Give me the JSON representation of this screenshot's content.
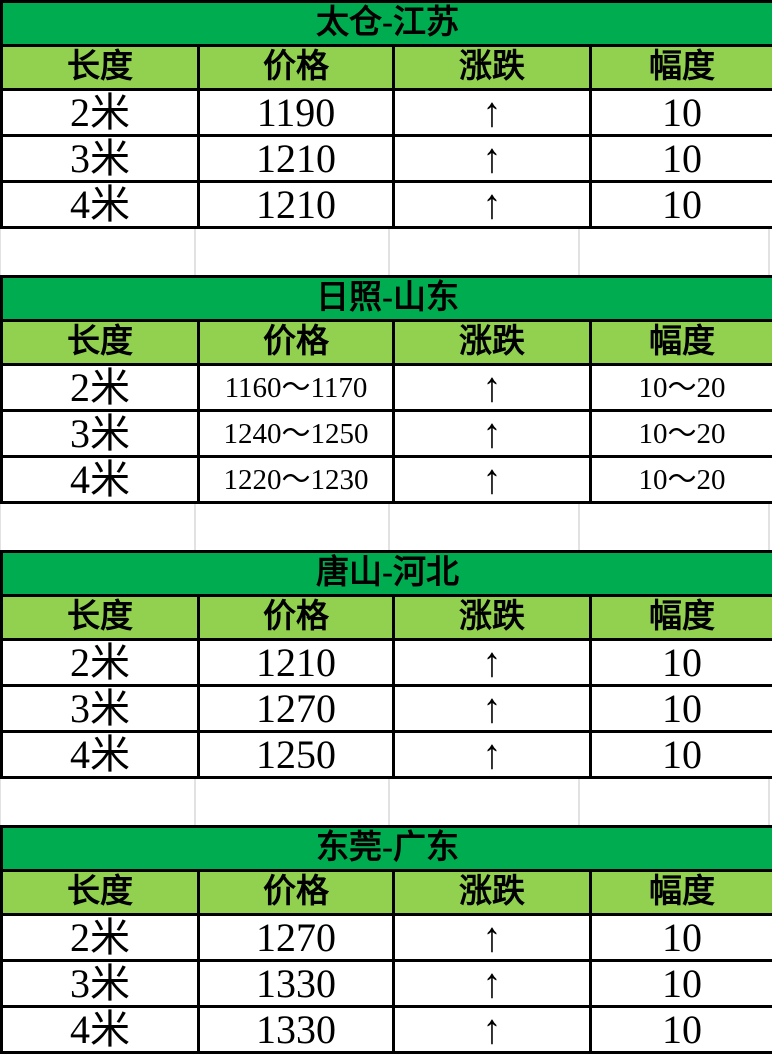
{
  "colors": {
    "title_bg": "#00AC50",
    "header_bg": "#92D050",
    "border": "#000000",
    "grid_line": "#E2E2E2",
    "text": "#000000",
    "page_bg": "#FFFFFF"
  },
  "columns": [
    "长度",
    "价格",
    "涨跌",
    "幅度"
  ],
  "up_arrow_icon": "↑",
  "tables": [
    {
      "title": "太仓-江苏",
      "rows": [
        {
          "length": "2米",
          "price": "1190",
          "direction": "↑",
          "change": "10"
        },
        {
          "length": "3米",
          "price": "1210",
          "direction": "↑",
          "change": "10"
        },
        {
          "length": "4米",
          "price": "1210",
          "direction": "↑",
          "change": "10"
        }
      ]
    },
    {
      "title": "日照-山东",
      "rows": [
        {
          "length": "2米",
          "price": "1160～1170",
          "direction": "↑",
          "change": "10～20"
        },
        {
          "length": "3米",
          "price": "1240～1250",
          "direction": "↑",
          "change": "10～20"
        },
        {
          "length": "4米",
          "price": "1220～1230",
          "direction": "↑",
          "change": "10～20"
        }
      ]
    },
    {
      "title": "唐山-河北",
      "rows": [
        {
          "length": "2米",
          "price": "1210",
          "direction": "↑",
          "change": "10"
        },
        {
          "length": "3米",
          "price": "1270",
          "direction": "↑",
          "change": "10"
        },
        {
          "length": "4米",
          "price": "1250",
          "direction": "↑",
          "change": "10"
        }
      ]
    },
    {
      "title": "东莞-广东",
      "rows": [
        {
          "length": "2米",
          "price": "1270",
          "direction": "↑",
          "change": "10"
        },
        {
          "length": "3米",
          "price": "1330",
          "direction": "↑",
          "change": "10"
        },
        {
          "length": "4米",
          "price": "1330",
          "direction": "↑",
          "change": "10"
        }
      ]
    }
  ]
}
